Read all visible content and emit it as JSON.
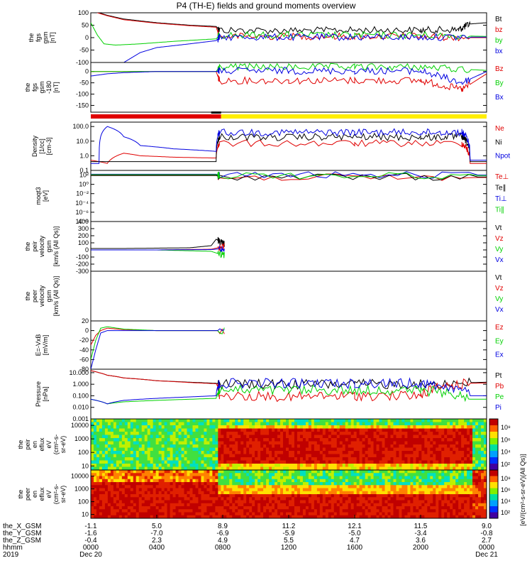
{
  "title": "P4 (TH-E) fields and ground moments overview",
  "colors": {
    "black": "#000000",
    "red": "#e00000",
    "green": "#00d000",
    "blue": "#0000e0",
    "yellow": "#ffee00"
  },
  "chart_data": [
    {
      "type": "line",
      "panel": "fgs",
      "ylabel": [
        "the",
        "fgs",
        "gsm",
        "[nT]"
      ],
      "ylim": [
        -100,
        100
      ],
      "yticks": [
        "100",
        "50",
        "0",
        "-50",
        "-100"
      ],
      "series": [
        {
          "name": "Bt",
          "color": "#000000",
          "x": [
            0,
            0.5,
            1,
            2,
            4,
            6,
            7.6,
            7.8,
            12,
            16,
            20,
            22.3,
            23,
            24
          ],
          "y": [
            110,
            100,
            90,
            75,
            60,
            50,
            45,
            30,
            28,
            30,
            30,
            32,
            55,
            60
          ]
        },
        {
          "name": "bz",
          "color": "#e00000",
          "x": [
            0,
            0.5,
            1,
            2,
            4,
            6,
            7.6,
            7.8,
            12,
            16,
            20,
            23,
            24
          ],
          "y": [
            110,
            98,
            88,
            72,
            58,
            48,
            42,
            5,
            5,
            5,
            5,
            0,
            0
          ]
        },
        {
          "name": "by",
          "color": "#00d000",
          "x": [
            0,
            0.4,
            0.8,
            1.5,
            3,
            5,
            7.6,
            7.8,
            12,
            16,
            20,
            24
          ],
          "y": [
            60,
            10,
            -25,
            -30,
            -25,
            -15,
            -5,
            10,
            10,
            10,
            10,
            5
          ]
        },
        {
          "name": "bx",
          "color": "#0000e0",
          "x": [
            2,
            2.5,
            3,
            4,
            6,
            7.6,
            7.8,
            12,
            16,
            20,
            24
          ],
          "y": [
            -100,
            -80,
            -60,
            -40,
            -25,
            -12,
            2,
            2,
            2,
            2,
            2
          ]
        }
      ]
    },
    {
      "type": "line",
      "panel": "fgs-dsl",
      "ylabel": [
        "the",
        "fgs",
        "gsm",
        "-180",
        "[nT]"
      ],
      "ylim": [
        -180,
        40
      ],
      "yticks": [
        "0",
        "-50",
        "-100",
        "-150"
      ],
      "series": [
        {
          "name": "Bz",
          "color": "#e00000",
          "x": [
            0,
            2,
            4,
            6,
            7.6,
            7.8,
            12,
            16,
            20,
            22.5,
            24
          ],
          "y": [
            0,
            0,
            0,
            0,
            0,
            -40,
            -40,
            -40,
            -40,
            -80,
            -10
          ]
        },
        {
          "name": "By",
          "color": "#00d000",
          "x": [
            0,
            2,
            4,
            6,
            7.6,
            7.8,
            12,
            16,
            20,
            24
          ],
          "y": [
            0,
            0,
            0,
            0,
            0,
            20,
            20,
            20,
            20,
            5
          ]
        },
        {
          "name": "Bx",
          "color": "#0000e0",
          "x": [
            0,
            1,
            2,
            4,
            6,
            7.6,
            7.8,
            12,
            16,
            20,
            22.5,
            24
          ],
          "y": [
            -20,
            -10,
            -5,
            0,
            0,
            0,
            3,
            3,
            3,
            3,
            -50,
            0
          ]
        }
      ]
    },
    {
      "type": "line",
      "panel": "density",
      "scale": "log",
      "ylabel": [
        "Density",
        "[1/cc]",
        "[cm-3]"
      ],
      "ylim": [
        0.1,
        200
      ],
      "yticks": [
        "100.0",
        "10.0",
        "1.0",
        "0.1"
      ],
      "series": [
        {
          "name": "Ne",
          "color": "#e00000",
          "x": [
            0,
            1,
            2,
            3,
            5,
            7.6,
            7.8,
            16,
            22.5,
            23,
            24
          ],
          "y": [
            0.5,
            0.3,
            1.5,
            1.0,
            0.8,
            0.7,
            7,
            7,
            7,
            0.3,
            0.3
          ]
        },
        {
          "name": "Ni",
          "color": "#000000",
          "x": [
            0,
            2,
            4,
            6,
            7.6,
            7.8,
            12,
            16,
            20,
            22.5,
            23,
            24
          ],
          "y": [
            0.4,
            0.4,
            0.4,
            0.4,
            0.4,
            20,
            18,
            20,
            18,
            20,
            0.4,
            0.4
          ]
        },
        {
          "name": "Npot",
          "color": "#0000e0",
          "x": [
            0,
            0.5,
            1,
            2,
            3,
            5,
            7.6,
            7.8,
            12,
            16,
            20,
            22.5,
            23,
            24
          ],
          "y": [
            0.3,
            0.3,
            100,
            20,
            5,
            3,
            2,
            40,
            40,
            40,
            40,
            40,
            0.5,
            0.5
          ]
        }
      ]
    },
    {
      "type": "line",
      "panel": "temperature",
      "scale": "log",
      "ylabel": [
        "moqt3",
        "[eV]"
      ],
      "ylim": [
        1e-08,
        1000
      ],
      "yticks": [
        "10²",
        "10⁰",
        "10⁻²",
        "10⁻⁴",
        "10⁻⁶",
        "10⁻⁸"
      ],
      "series": [
        {
          "name": "Te⊥",
          "color": "#e00000",
          "x": [
            0,
            7.6,
            7.8,
            24
          ],
          "y": [
            100,
            100,
            30,
            30
          ]
        },
        {
          "name": "Te∥",
          "color": "#000000",
          "x": [
            0,
            7.6,
            7.8,
            24
          ],
          "y": [
            80,
            80,
            40,
            40
          ]
        },
        {
          "name": "Ti⊥",
          "color": "#0000e0",
          "x": [
            0,
            7.6,
            7.8,
            24
          ],
          "y": [
            150,
            150,
            100,
            100
          ]
        },
        {
          "name": "Ti∥",
          "color": "#00d000",
          "x": [
            0,
            7.6,
            7.8,
            24
          ],
          "y": [
            120,
            120,
            80,
            80
          ]
        }
      ]
    },
    {
      "type": "line",
      "panel": "peir-velocity",
      "ylabel": [
        "the",
        "peir",
        "velocity",
        "gsm",
        "[km/s (All Qs)]"
      ],
      "ylim": [
        -300,
        400
      ],
      "yticks": [
        "400",
        "300",
        "200",
        "100",
        "0",
        "-100",
        "-200",
        "-300"
      ],
      "series": [
        {
          "name": "Vt",
          "color": "#000000",
          "x": [
            0,
            2,
            4,
            6,
            7.3,
            7.6,
            8.1
          ],
          "y": [
            20,
            20,
            25,
            30,
            60,
            150,
            80
          ]
        },
        {
          "name": "Vz",
          "color": "#e00000",
          "x": [
            0,
            4,
            7.3,
            8.1
          ],
          "y": [
            0,
            0,
            10,
            50
          ]
        },
        {
          "name": "Vy",
          "color": "#00d000",
          "x": [
            0,
            4,
            7.3,
            8.1
          ],
          "y": [
            0,
            0,
            -20,
            -80
          ]
        },
        {
          "name": "Vx",
          "color": "#0000e0",
          "x": [
            0,
            4,
            7.3,
            8.1
          ],
          "y": [
            0,
            0,
            5,
            20
          ]
        }
      ]
    },
    {
      "type": "line",
      "panel": "peer-velocity",
      "ylabel": [
        "the",
        "peer",
        "velocity",
        "gsm",
        "[km/s (All Qs)]"
      ],
      "ylim": [
        -300,
        400
      ],
      "series": [
        {
          "name": "Vt",
          "color": "#000000",
          "x": [],
          "y": []
        },
        {
          "name": "Vz",
          "color": "#e00000",
          "x": [],
          "y": []
        },
        {
          "name": "Vy",
          "color": "#00d000",
          "x": [],
          "y": []
        },
        {
          "name": "Vx",
          "color": "#0000e0",
          "x": [],
          "y": []
        }
      ]
    },
    {
      "type": "line",
      "panel": "efield",
      "ylabel": [
        "E=-VxB",
        "[mV/m]"
      ],
      "ylim": [
        -80,
        20
      ],
      "yticks": [
        "20",
        "0",
        "-20",
        "-40",
        "-60",
        "-80"
      ],
      "series": [
        {
          "name": "Ez",
          "color": "#e00000",
          "x": [
            0,
            0.3,
            0.6,
            1,
            2,
            4,
            8.1
          ],
          "y": [
            -30,
            -10,
            0,
            5,
            2,
            0,
            0
          ]
        },
        {
          "name": "Ey",
          "color": "#00d000",
          "x": [
            0,
            0.3,
            0.6,
            1,
            2,
            4,
            8.1
          ],
          "y": [
            -60,
            -20,
            5,
            8,
            3,
            0,
            0
          ]
        },
        {
          "name": "Ex",
          "color": "#0000e0",
          "x": [
            0,
            0.3,
            0.6,
            1,
            2,
            4,
            8.1
          ],
          "y": [
            -80,
            -40,
            -5,
            0,
            0,
            0,
            0
          ]
        }
      ]
    },
    {
      "type": "line",
      "panel": "pressure",
      "scale": "log",
      "ylabel": [
        "Pressure",
        "[nPa]"
      ],
      "ylim": [
        0.001,
        20
      ],
      "yticks": [
        "10.000",
        "1.000",
        "0.100",
        "0.010",
        "0.001"
      ],
      "series": [
        {
          "name": "Pt",
          "color": "#000000",
          "x": [
            0,
            0.5,
            1,
            2,
            4,
            6,
            7.6,
            7.8,
            12,
            16,
            20,
            24
          ],
          "y": [
            15,
            10,
            6,
            3.5,
            2,
            1.5,
            1.2,
            1,
            1,
            1,
            1,
            1.5
          ]
        },
        {
          "name": "Pb",
          "color": "#e00000",
          "x": [
            0,
            0.5,
            1,
            2,
            4,
            6,
            7.6,
            7.8,
            12,
            16,
            20,
            23,
            24
          ],
          "y": [
            15,
            10,
            6,
            3.5,
            2,
            1.4,
            1.1,
            0.1,
            0.08,
            0.1,
            0.1,
            1.2,
            1.3
          ]
        },
        {
          "name": "Pe",
          "color": "#00d000",
          "x": [
            0,
            1,
            2,
            4,
            6,
            7.6,
            7.8,
            12,
            16,
            20,
            23,
            24
          ],
          "y": [
            0.05,
            0.02,
            0.03,
            0.04,
            0.05,
            0.06,
            0.3,
            0.3,
            0.3,
            0.3,
            0.05,
            0.05
          ]
        },
        {
          "name": "Pi",
          "color": "#0000e0",
          "x": [
            0,
            1,
            2,
            4,
            6,
            7.6,
            7.8,
            12,
            16,
            20,
            23,
            24
          ],
          "y": [
            0.05,
            0.02,
            0.04,
            0.06,
            0.08,
            0.1,
            1.2,
            1.2,
            1.2,
            1.2,
            0.1,
            0.1
          ]
        }
      ]
    },
    {
      "type": "heatmap",
      "panel": "peir-spectrogram",
      "ylabel": [
        "the",
        "peir",
        "en",
        "eflux",
        "eV",
        "(cm²-s-",
        "sr-eV)"
      ],
      "yticks": [
        "10000",
        "1000",
        "100",
        "10"
      ],
      "colorbar": {
        "ticks": [
          "10⁸",
          "10⁶",
          "10⁴",
          "10²"
        ]
      }
    },
    {
      "type": "heatmap",
      "panel": "peer-spectrogram",
      "ylabel": [
        "the",
        "peer",
        "en",
        "eflux",
        "eV",
        "(cm²-s-",
        "sr-eV)"
      ],
      "yticks": [
        "10000",
        "1000",
        "100",
        "10"
      ],
      "colorbar": {
        "ticks": [
          "10⁸",
          "10⁶",
          "10⁴",
          "10²"
        ]
      }
    }
  ],
  "colorbar_label": "[eV/(cm²-s-sr-eV)(All Qs)]",
  "footer": {
    "row_labels": [
      "the_X_GSM",
      "the_Y_GSM",
      "the_Z_GSM",
      "hhmm",
      "2019"
    ],
    "columns": [
      {
        "x": "-1.1",
        "y": "-1.6",
        "z": "-0.4",
        "hhmm": "0000",
        "date": "Dec 20"
      },
      {
        "x": "5.0",
        "y": "-7.0",
        "z": "2.3",
        "hhmm": "0400",
        "date": ""
      },
      {
        "x": "8.9",
        "y": "-6.9",
        "z": "4.9",
        "hhmm": "0800",
        "date": ""
      },
      {
        "x": "11.2",
        "y": "-5.9",
        "z": "5.5",
        "hhmm": "1200",
        "date": ""
      },
      {
        "x": "12.1",
        "y": "-5.0",
        "z": "4.7",
        "hhmm": "1600",
        "date": ""
      },
      {
        "x": "11.5",
        "y": "-3.4",
        "z": "3.6",
        "hhmm": "2000",
        "date": ""
      },
      {
        "x": "9.0",
        "y": "-0.8",
        "z": "2.7",
        "hhmm": "0000",
        "date": "Dec 21"
      }
    ]
  }
}
